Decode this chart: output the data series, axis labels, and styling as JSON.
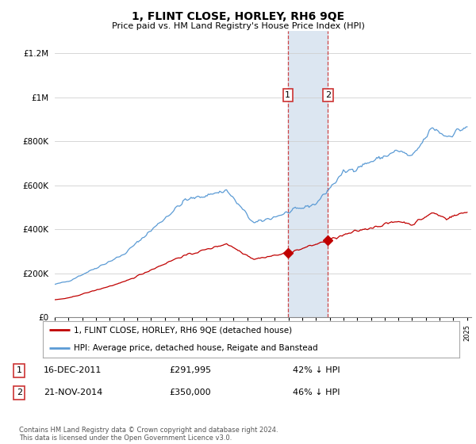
{
  "title": "1, FLINT CLOSE, HORLEY, RH6 9QE",
  "subtitle": "Price paid vs. HM Land Registry's House Price Index (HPI)",
  "y_ticks": [
    0,
    200000,
    400000,
    600000,
    800000,
    1000000,
    1200000
  ],
  "y_tick_labels": [
    "£0",
    "£200K",
    "£400K",
    "£600K",
    "£800K",
    "£1M",
    "£1.2M"
  ],
  "transaction1_date": "16-DEC-2011",
  "transaction1_price": 291995,
  "transaction1_year": 2011.958,
  "transaction1_label": "42% ↓ HPI",
  "transaction2_date": "21-NOV-2014",
  "transaction2_price": 350000,
  "transaction2_year": 2014.875,
  "transaction2_label": "46% ↓ HPI",
  "legend_line1": "1, FLINT CLOSE, HORLEY, RH6 9QE (detached house)",
  "legend_line2": "HPI: Average price, detached house, Reigate and Banstead",
  "footer": "Contains HM Land Registry data © Crown copyright and database right 2024.\nThis data is licensed under the Open Government Licence v3.0.",
  "hpi_color": "#5b9bd5",
  "price_color": "#c00000",
  "background_color": "#ffffff",
  "highlight_color": "#dce6f1",
  "grid_color": "#d0d0d0"
}
